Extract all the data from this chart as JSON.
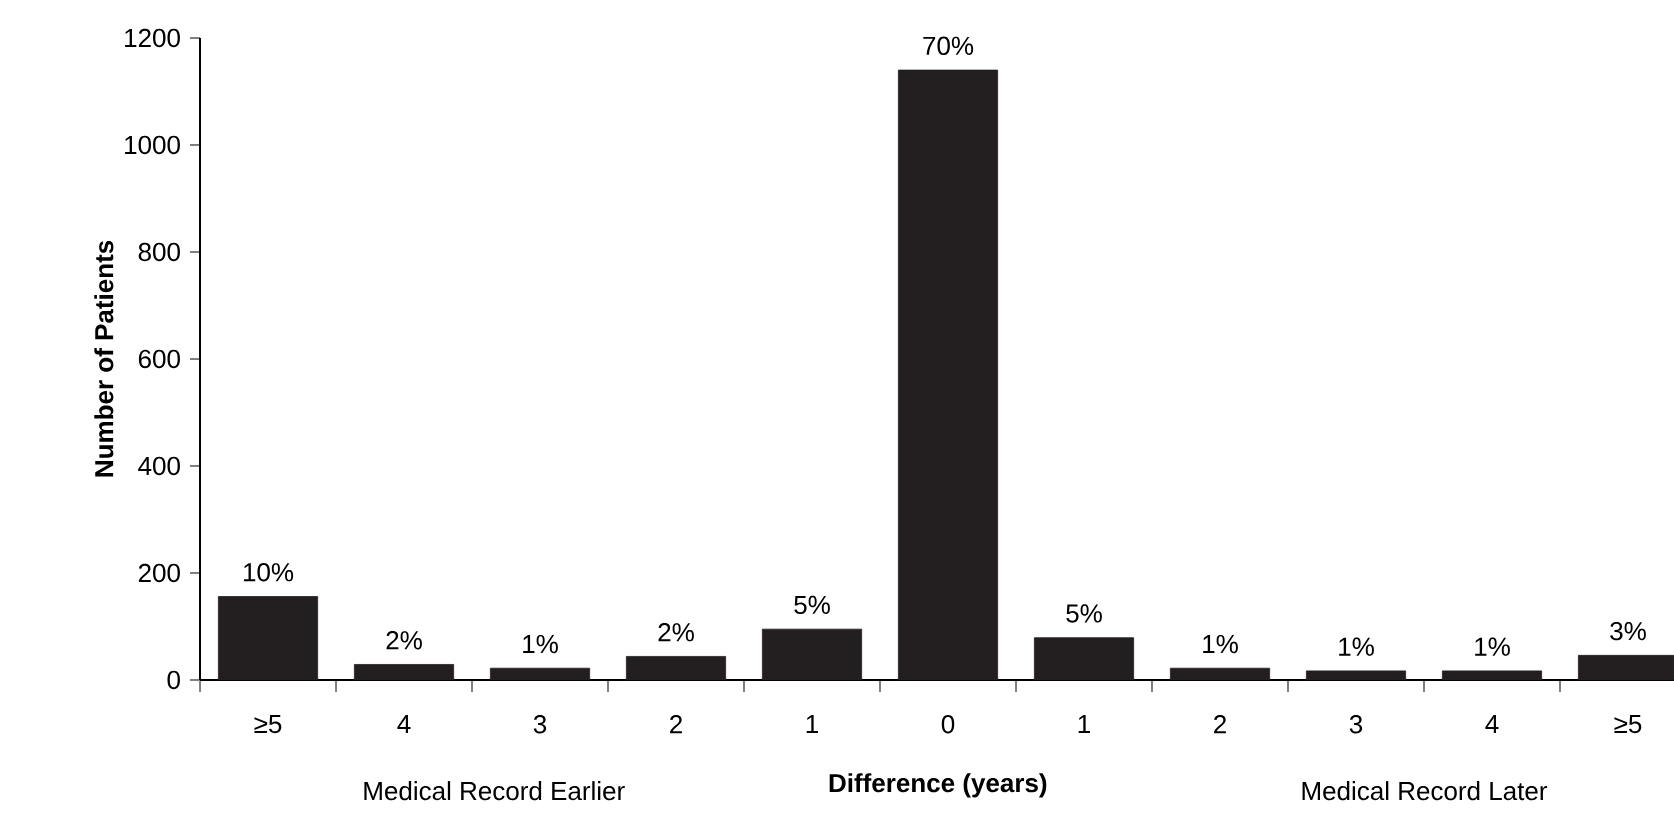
{
  "chart_data": {
    "type": "bar",
    "xlabel": "Difference (years)",
    "ylabel": "Number of Patients",
    "categories": [
      "≥5",
      "4",
      "3",
      "2",
      "1",
      "0",
      "1",
      "2",
      "3",
      "4",
      "≥5"
    ],
    "values": [
      156,
      29,
      22,
      44,
      95,
      1140,
      79,
      22,
      17,
      17,
      46
    ],
    "color": "#231f20",
    "ylim": [
      0,
      1200
    ],
    "yticks": [
      0,
      200,
      400,
      600,
      800,
      1000,
      1200
    ],
    "annotations": [
      "Medical Record Earlier",
      "Medical Record Later",
      "10%",
      "2%",
      "1%",
      "2%",
      "5%",
      "70%",
      "5%",
      "1%",
      "1%",
      "1%",
      "3%"
    ]
  }
}
